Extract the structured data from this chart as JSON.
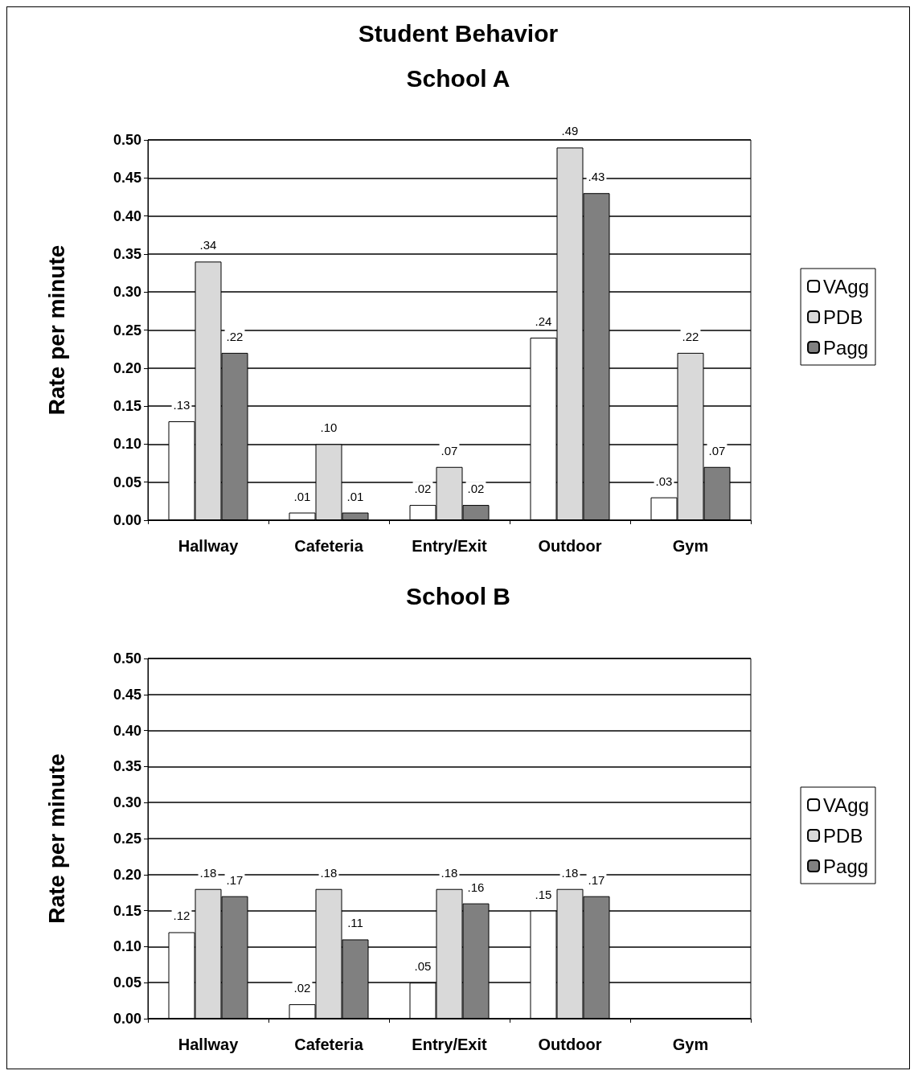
{
  "chart_data": [
    {
      "type": "bar",
      "title": "Student Behavior",
      "subtitle": "School A",
      "ylabel": "Rate per minute",
      "categories": [
        "Hallway",
        "Cafeteria",
        "Entry/Exit",
        "Outdoor",
        "Gym"
      ],
      "series": [
        {
          "name": "VAgg",
          "color": "#ffffff",
          "values": [
            0.13,
            0.01,
            0.02,
            0.24,
            0.03
          ],
          "value_labels": [
            ".13",
            ".01",
            ".02",
            ".24",
            ".03"
          ]
        },
        {
          "name": "PDB",
          "color": "#d9d9d9",
          "values": [
            0.34,
            0.1,
            0.07,
            0.49,
            0.22
          ],
          "value_labels": [
            ".34",
            ".10",
            ".07",
            ".49",
            ".22"
          ]
        },
        {
          "name": "Pagg",
          "color": "#808080",
          "values": [
            0.22,
            0.01,
            0.02,
            0.43,
            0.07
          ],
          "value_labels": [
            ".22",
            ".01",
            ".02",
            ".43",
            ".07"
          ]
        }
      ],
      "ylim": [
        0,
        0.5
      ],
      "yticks": [
        {
          "value": 0,
          "label": "0.00"
        },
        {
          "value": 0.05,
          "label": "0.05"
        },
        {
          "value": 0.1,
          "label": "0.10"
        },
        {
          "value": 0.15,
          "label": "0.15"
        },
        {
          "value": 0.2,
          "label": "0.20"
        },
        {
          "value": 0.25,
          "label": "0.25"
        },
        {
          "value": 0.3,
          "label": "0.30"
        },
        {
          "value": 0.35,
          "label": "0.35"
        },
        {
          "value": 0.4,
          "label": "0.40"
        },
        {
          "value": 0.45,
          "label": "0.45"
        },
        {
          "value": 0.5,
          "label": "0.50"
        }
      ],
      "grid": "y",
      "legend": "right"
    },
    {
      "type": "bar",
      "title": "School B",
      "ylabel": "Rate per minute",
      "categories": [
        "Hallway",
        "Cafeteria",
        "Entry/Exit",
        "Outdoor",
        "Gym"
      ],
      "series": [
        {
          "name": "VAgg",
          "color": "#ffffff",
          "values": [
            0.12,
            0.02,
            0.05,
            0.15,
            null
          ],
          "value_labels": [
            ".12",
            ".02",
            ".05",
            ".15",
            null
          ]
        },
        {
          "name": "PDB",
          "color": "#d9d9d9",
          "values": [
            0.18,
            0.18,
            0.18,
            0.18,
            null
          ],
          "value_labels": [
            ".18",
            ".18",
            ".18",
            ".18",
            null
          ]
        },
        {
          "name": "Pagg",
          "color": "#808080",
          "values": [
            0.17,
            0.11,
            0.16,
            0.17,
            null
          ],
          "value_labels": [
            ".17",
            ".11",
            ".16",
            ".17",
            null
          ]
        }
      ],
      "ylim": [
        0,
        0.5
      ],
      "yticks": [
        {
          "value": 0,
          "label": "0.00"
        },
        {
          "value": 0.05,
          "label": "0.05"
        },
        {
          "value": 0.1,
          "label": "0.10"
        },
        {
          "value": 0.15,
          "label": "0.15"
        },
        {
          "value": 0.2,
          "label": "0.20"
        },
        {
          "value": 0.25,
          "label": "0.25"
        },
        {
          "value": 0.3,
          "label": "0.30"
        },
        {
          "value": 0.35,
          "label": "0.35"
        },
        {
          "value": 0.4,
          "label": "0.40"
        },
        {
          "value": 0.45,
          "label": "0.45"
        },
        {
          "value": 0.5,
          "label": "0.50"
        }
      ],
      "grid": "y",
      "legend": "right"
    }
  ]
}
